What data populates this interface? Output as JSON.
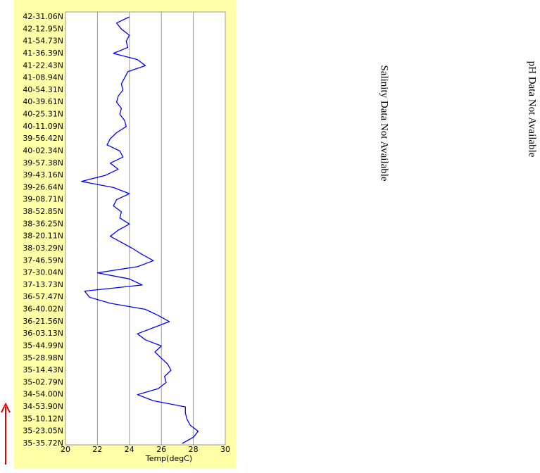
{
  "chart_data": {
    "type": "line",
    "orientation": "horizontal",
    "xlabel": "Temp(degC)",
    "xlim": [
      20,
      30
    ],
    "xticks": [
      20,
      22,
      24,
      26,
      28,
      30
    ],
    "grid": true,
    "color": "#0000ff",
    "categories": [
      "42-31.06N",
      null,
      "42-12.95N",
      null,
      "41-54.73N",
      null,
      "41-36.39N",
      null,
      "41-22.43N",
      null,
      "41-08.94N",
      null,
      "40-54.31N",
      null,
      "40-39.61N",
      null,
      "40-25.31N",
      null,
      "40-11.09N",
      null,
      "39-56.42N",
      null,
      "40-02.34N",
      null,
      "39-57.38N",
      null,
      "39-43.16N",
      null,
      "39-26.64N",
      null,
      "39-08.71N",
      null,
      "38-52.85N",
      null,
      "38-36.25N",
      null,
      "38-20.11N",
      null,
      "38-03.29N",
      null,
      "37-46.59N",
      null,
      "37-30.04N",
      null,
      "37-13.73N",
      null,
      "36-57.47N",
      null,
      "36-40.02N",
      null,
      "36-21.56N",
      null,
      "36-03.13N",
      null,
      "35-44.99N",
      null,
      "35-28.98N",
      null,
      "35-14.43N",
      null,
      "35-02.79N",
      null,
      "34-54.00N",
      null,
      "34-53.90N",
      null,
      "35-10.12N",
      null,
      "35-23.05N",
      null,
      "35-35.72N"
    ],
    "values": [
      24.0,
      23.2,
      23.5,
      24.0,
      23.8,
      23.9,
      23.0,
      24.5,
      25.0,
      23.9,
      23.7,
      23.5,
      23.6,
      23.3,
      23.2,
      23.5,
      23.4,
      23.7,
      23.8,
      23.2,
      22.8,
      22.6,
      23.4,
      23.6,
      22.8,
      23.3,
      22.5,
      21.0,
      23.0,
      24.0,
      23.2,
      23.0,
      23.5,
      23.4,
      24.0,
      23.3,
      22.8,
      23.5,
      24.2,
      24.8,
      25.5,
      24.5,
      22.0,
      24.0,
      24.8,
      21.2,
      21.5,
      22.8,
      25.0,
      25.8,
      26.5,
      25.5,
      24.5,
      25.0,
      26.0,
      25.6,
      26.0,
      26.4,
      26.6,
      26.2,
      26.3,
      25.8,
      24.5,
      25.5,
      27.5,
      27.5,
      27.6,
      27.8,
      28.3,
      28.0,
      27.3
    ],
    "annotations": [
      "Salinity Data Not Available",
      "pH Data Not Available"
    ]
  }
}
